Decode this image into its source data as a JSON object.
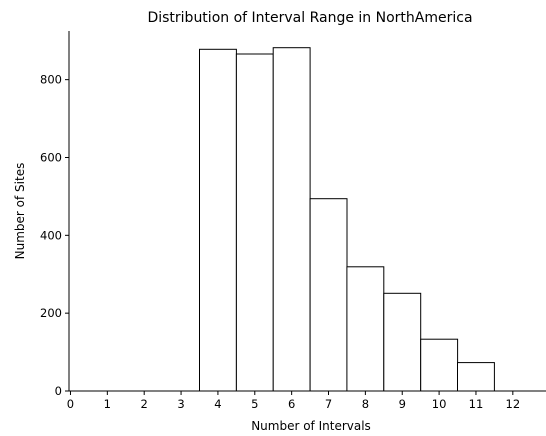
{
  "chart_data": {
    "type": "bar",
    "title": "Distribution of Interval Range in NorthAmerica",
    "xlabel": "Number of Intervals",
    "ylabel": "Number of Sites",
    "x": [
      1,
      2,
      3,
      4,
      5,
      6,
      7,
      8,
      9,
      10,
      11,
      12
    ],
    "values": [
      0,
      0,
      0,
      878,
      866,
      882,
      494,
      319,
      251,
      133,
      73,
      0
    ],
    "xticks": [
      "0",
      "1",
      "2",
      "3",
      "4",
      "5",
      "6",
      "7",
      "8",
      "9",
      "10",
      "11",
      "12"
    ],
    "yticks": [
      "0",
      "200",
      "400",
      "600",
      "800"
    ],
    "xlim": [
      -0.04,
      12.9
    ],
    "ylim": [
      0,
      925
    ],
    "bar_color": "#ffffff",
    "edge_color": "#000000",
    "grid": false
  }
}
